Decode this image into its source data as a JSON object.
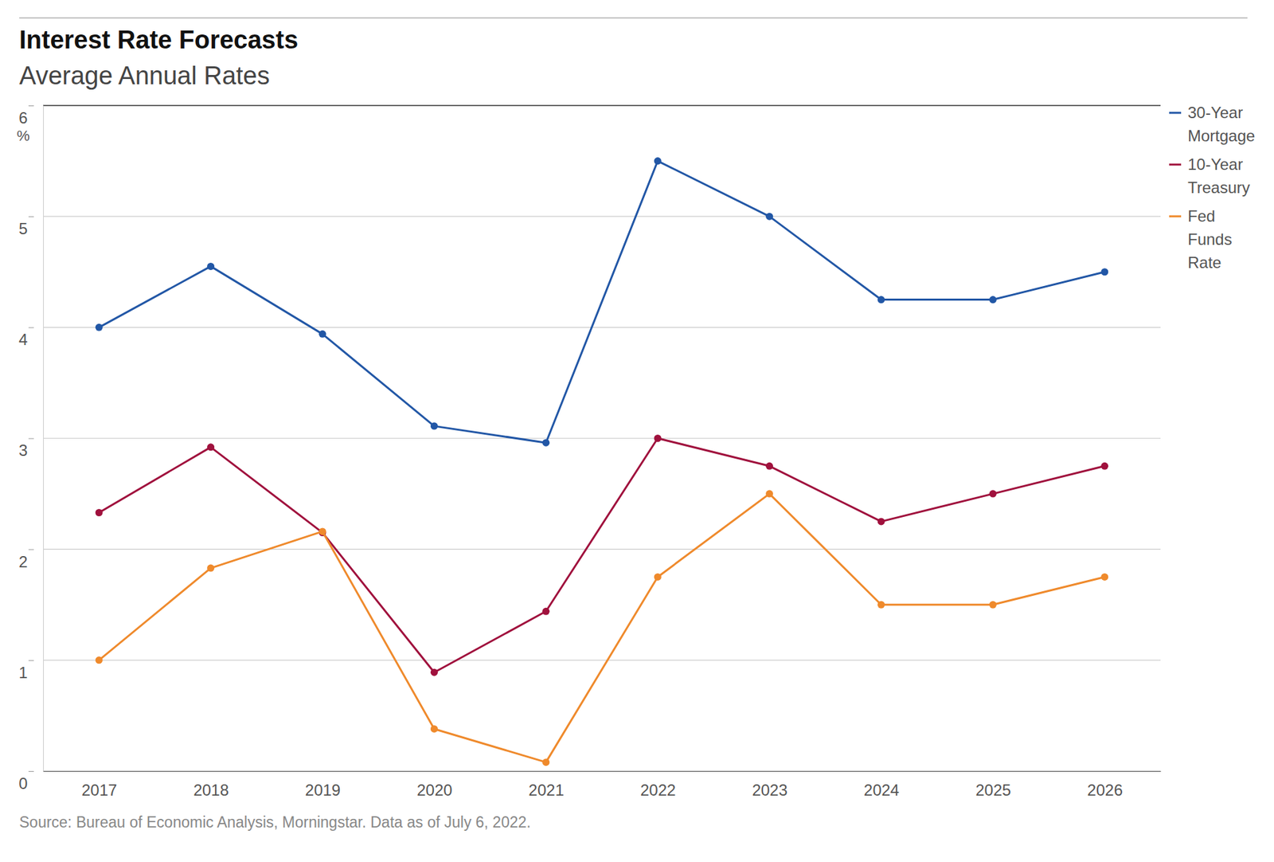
{
  "chart_data": {
    "type": "line",
    "title": "Interest Rate Forecasts",
    "subtitle": "Average Annual Rates",
    "ylabel": "%",
    "source": "Source: Bureau of Economic Analysis, Morningstar. Data as of July 6, 2022.",
    "categories": [
      "2017",
      "2018",
      "2019",
      "2020",
      "2021",
      "2022",
      "2023",
      "2024",
      "2025",
      "2026"
    ],
    "series": [
      {
        "name": "30-Year Mortgage",
        "color": "#2257a6",
        "marker": "circle",
        "values": [
          4.0,
          4.55,
          3.94,
          3.11,
          2.96,
          5.5,
          5.0,
          4.25,
          4.25,
          4.5
        ]
      },
      {
        "name": "10-Year Treasury",
        "color": "#a0113d",
        "marker": "circle",
        "values": [
          2.33,
          2.92,
          2.15,
          0.89,
          1.44,
          3.0,
          2.75,
          2.25,
          2.5,
          2.75
        ]
      },
      {
        "name": "Fed Funds Rate",
        "color": "#ef8a2c",
        "marker": "circle",
        "values": [
          1.0,
          1.83,
          2.16,
          0.38,
          0.08,
          1.75,
          2.5,
          1.5,
          1.5,
          1.75
        ]
      }
    ],
    "ylim": [
      0,
      6
    ],
    "yticks": [
      0,
      1,
      2,
      3,
      4,
      5,
      6
    ],
    "grid": true,
    "legend": "right"
  }
}
